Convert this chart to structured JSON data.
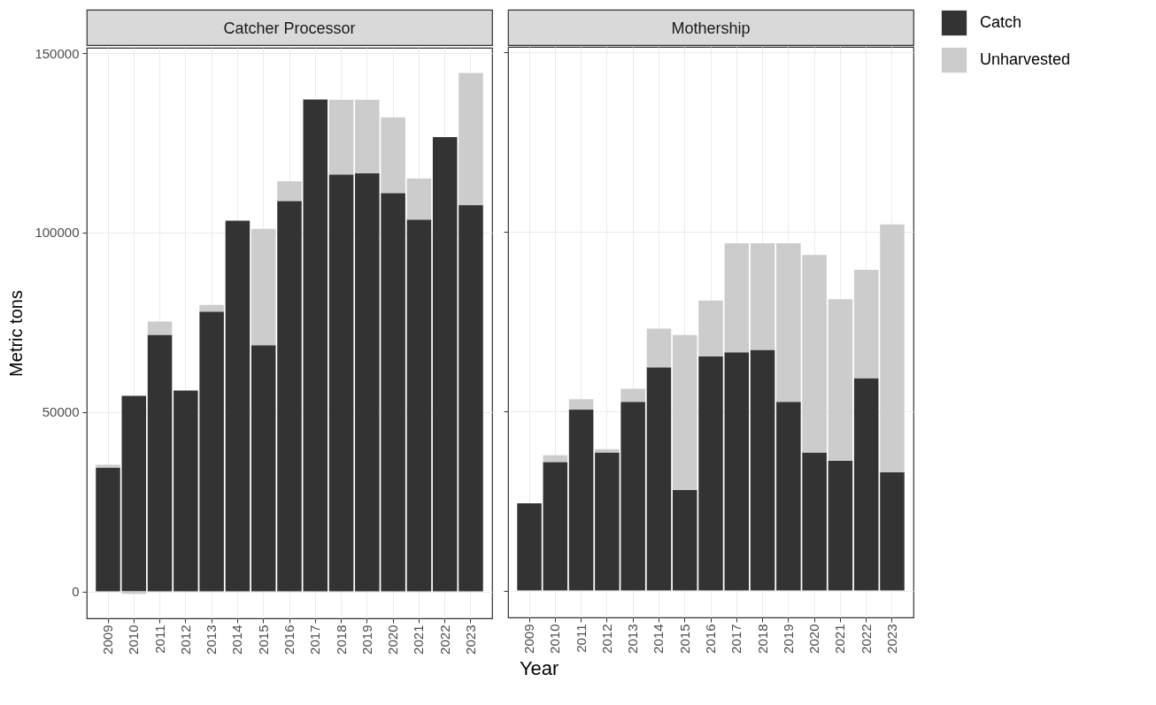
{
  "chart_data": [
    {
      "type": "bar",
      "title": "Catcher Processor",
      "ylabel": "Metric tons",
      "xlabel": "Year",
      "stacked": true,
      "categories": [
        "2009",
        "2010",
        "2011",
        "2012",
        "2013",
        "2014",
        "2015",
        "2016",
        "2017",
        "2018",
        "2019",
        "2020",
        "2021",
        "2022",
        "2023"
      ],
      "series": [
        {
          "name": "Catch",
          "color": "#333333",
          "values": [
            34500,
            54500,
            71500,
            56000,
            78000,
            103300,
            68600,
            108800,
            137100,
            116200,
            116500,
            111000,
            103600,
            126600,
            107700
          ]
        },
        {
          "name": "Unharvested",
          "color": "#cccccc",
          "values": [
            800,
            -700,
            3700,
            0,
            1800,
            0,
            32400,
            5500,
            0,
            20800,
            20500,
            21100,
            11500,
            0,
            36800
          ]
        }
      ],
      "ylim": [
        -7500,
        151500
      ],
      "yticks": [
        0,
        50000,
        100000,
        150000
      ],
      "grid": true,
      "legend": "right"
    },
    {
      "type": "bar",
      "title": "Mothership",
      "stacked": true,
      "categories": [
        "2009",
        "2010",
        "2011",
        "2012",
        "2013",
        "2014",
        "2015",
        "2016",
        "2017",
        "2018",
        "2019",
        "2020",
        "2021",
        "2022",
        "2023"
      ],
      "series": [
        {
          "name": "Catch",
          "color": "#333333",
          "values": [
            24300,
            35800,
            50400,
            38500,
            52600,
            62200,
            28000,
            65300,
            66400,
            67100,
            52600,
            38500,
            36200,
            59200,
            32900
          ]
        },
        {
          "name": "Unharvested",
          "color": "#cccccc",
          "values": [
            0,
            1900,
            2900,
            900,
            3600,
            10800,
            43200,
            15500,
            30400,
            29700,
            44200,
            55000,
            45000,
            30200,
            69100
          ]
        }
      ],
      "ylim": [
        -7500,
        151500
      ],
      "yticks": [
        0,
        50000,
        100000,
        150000
      ],
      "grid": true,
      "legend": "right",
      "tick_labels": "x"
    }
  ]
}
